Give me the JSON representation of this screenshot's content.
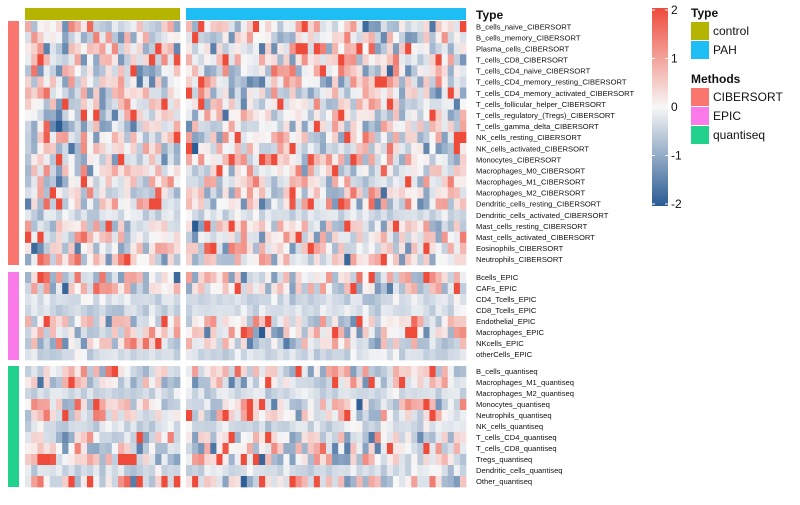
{
  "chart_data": {
    "type": "heatmap",
    "title": "",
    "column_annotation": {
      "title": "Type",
      "groups": [
        {
          "name": "control",
          "count": 25,
          "color": "#B5B400"
        },
        {
          "name": "PAH",
          "count": 46,
          "color": "#1EBEF4"
        }
      ]
    },
    "row_annotation": {
      "title": "Methods",
      "groups": [
        {
          "name": "CIBERSORT",
          "color": "#F8766D"
        },
        {
          "name": "EPIC",
          "color": "#F97AE8"
        },
        {
          "name": "quantiseq",
          "color": "#22D28C"
        }
      ]
    },
    "row_groups": [
      {
        "method": "CIBERSORT",
        "rows": [
          "B_cells_naive_CIBERSORT",
          "B_cells_memory_CIBERSORT",
          "Plasma_cells_CIBERSORT",
          "T_cells_CD8_CIBERSORT",
          "T_cells_CD4_naive_CIBERSORT",
          "T_cells_CD4_memory_resting_CIBERSORT",
          "T_cells_CD4_memory_activated_CIBERSORT",
          "T_cells_follicular_helper_CIBERSORT",
          "T_cells_regulatory_(Tregs)_CIBERSORT",
          "T_cells_gamma_delta_CIBERSORT",
          "NK_cells_resting_CIBERSORT",
          "NK_cells_activated_CIBERSORT",
          "Monocytes_CIBERSORT",
          "Macrophages_M0_CIBERSORT",
          "Macrophages_M1_CIBERSORT",
          "Macrophages_M2_CIBERSORT",
          "Dendritic_cells_resting_CIBERSORT",
          "Dendritic_cells_activated_CIBERSORT",
          "Mast_cells_resting_CIBERSORT",
          "Mast_cells_activated_CIBERSORT",
          "Eosinophils_CIBERSORT",
          "Neutrophils_CIBERSORT"
        ]
      },
      {
        "method": "EPIC",
        "rows": [
          "Bcells_EPIC",
          "CAFs_EPIC",
          "CD4_Tcells_EPIC",
          "CD8_Tcells_EPIC",
          "Endothelial_EPIC",
          "Macrophages_EPIC",
          "NKcells_EPIC",
          "otherCells_EPIC"
        ]
      },
      {
        "method": "quantiseq",
        "rows": [
          "B_cells_quantiseq",
          "Macrophages_M1_quantiseq",
          "Macrophages_M2_quantiseq",
          "Monocytes_quantiseq",
          "Neutrophils_quantiseq",
          "NK_cells_quantiseq",
          "T_cells_CD4_quantiseq",
          "T_cells_CD8_quantiseq",
          "Tregs_quantiseq",
          "Dendritic_cells_quantiseq",
          "Other_quantiseq"
        ]
      }
    ],
    "color_scale": {
      "min": -2,
      "max": 2,
      "ticks": [
        "2",
        "1",
        "0",
        "-1",
        "-2"
      ],
      "low_color": "#2B5C94",
      "mid_color": "#F7F7F7",
      "high_color": "#EE4B3B"
    },
    "values_note": "cell values are z-scores in [-2, 2]; generated pseudo-randomly to approximate the texture"
  }
}
